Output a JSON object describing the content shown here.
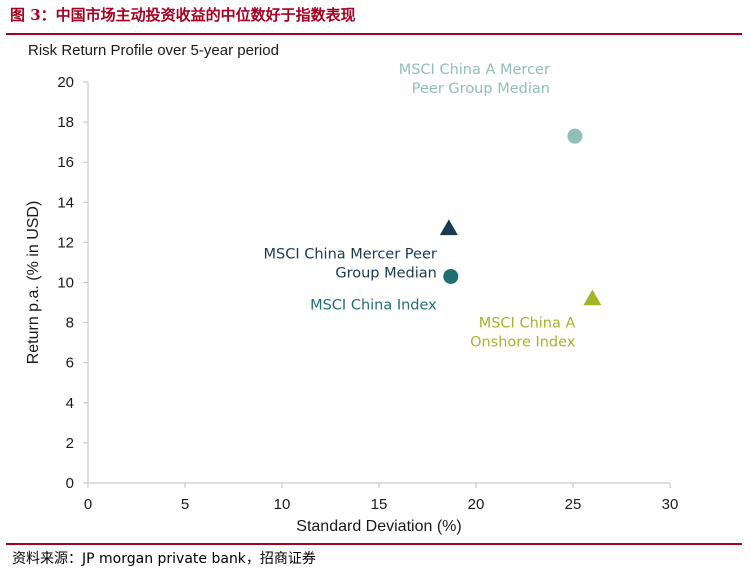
{
  "header": {
    "figure_title": "图 3：中国市场主动投资收益的中位数好于指数表现"
  },
  "footer": {
    "source": "资料来源：JP morgan private bank，招商证券"
  },
  "chart_data": {
    "type": "scatter",
    "title": "Risk Return Profile over 5-year period",
    "xlabel": "Standard Deviation (%)",
    "ylabel": "Return p.a. (% in USD)",
    "xlim": [
      0,
      30
    ],
    "ylim": [
      0,
      20
    ],
    "x_ticks": [
      0,
      5,
      10,
      15,
      20,
      25,
      30
    ],
    "y_ticks": [
      0,
      2,
      4,
      6,
      8,
      10,
      12,
      14,
      16,
      18,
      20
    ],
    "grid": false,
    "points": [
      {
        "label_lines": [
          "MSCI China A Mercer",
          "Peer Group Median"
        ],
        "x": 25.1,
        "y": 17.3,
        "marker": "circle",
        "color": "#8fbfb5"
      },
      {
        "label_lines": [
          "MSCI China Mercer Peer",
          "Group Median"
        ],
        "x": 18.6,
        "y": 12.7,
        "marker": "triangle",
        "color": "#1b3a52"
      },
      {
        "label_lines": [
          "MSCI China Index"
        ],
        "x": 18.7,
        "y": 10.3,
        "marker": "circle",
        "color": "#1f6f73"
      },
      {
        "label_lines": [
          "MSCI China A",
          "Onshore Index"
        ],
        "x": 26.0,
        "y": 9.2,
        "marker": "triangle",
        "color": "#a2b52b"
      }
    ]
  }
}
